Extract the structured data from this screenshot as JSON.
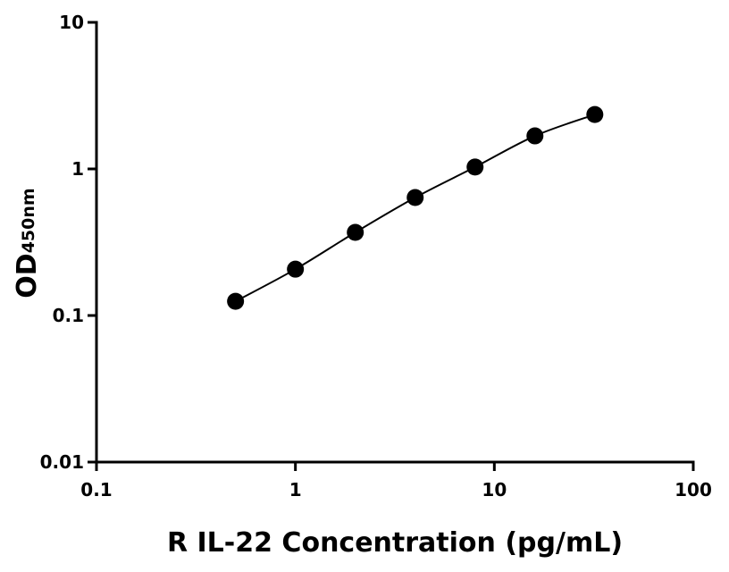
{
  "chart_data": {
    "type": "scatter",
    "xlabel": "R IL-22 Concentration (pg/mL)",
    "ylabel": "OD",
    "ylabel_subscript": "450nm",
    "x": [
      0.5,
      1,
      2,
      4,
      8,
      16,
      32
    ],
    "series": [
      {
        "color": "#000000",
        "values": [
          0.125,
          0.207,
          0.369,
          0.638,
          1.03,
          1.68,
          2.35
        ]
      }
    ],
    "xlim": [
      0.1,
      100
    ],
    "xticks": [
      0.1,
      1,
      10,
      100
    ],
    "ylim": [
      0.01,
      10
    ],
    "yticks": [
      0.01,
      0.1,
      1,
      10
    ],
    "xscale": "log",
    "yscale": "log",
    "fit_line": true
  }
}
